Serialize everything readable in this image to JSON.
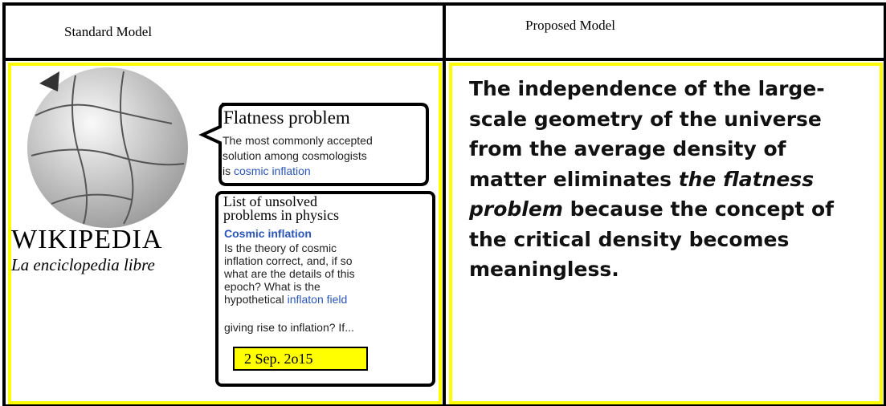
{
  "header": {
    "left": "Standard Model",
    "right": "Proposed Model"
  },
  "wikipedia": {
    "wordmark": "WIKIPEDIA",
    "tagline": "La enciclopedia libre"
  },
  "bubble": {
    "title": "Flatness problem",
    "line1": "The most commonly accepted",
    "line2": "solution among  cosmologists",
    "line3": "is ",
    "link": "cosmic inflation"
  },
  "unsolved": {
    "title1": "List of unsolved",
    "title2": "problems in physics",
    "heading": "Cosmic inflation",
    "lines": [
      "Is the theory of cosmic",
      "inflation correct, and, if so",
      "what are the details of this",
      "epoch? What is the",
      "hypothetical "
    ],
    "link": "inflaton field",
    "last": "giving rise to inflation? If...",
    "date": "2 Sep. 2o15"
  },
  "proposed": {
    "segments": [
      "The independence of the large-",
      "scale geometry of the universe",
      "from the average density of",
      "matter eliminates ",
      "the flatness",
      "problem",
      " because the concept of",
      "the critical density  becomes",
      "meaningless."
    ]
  }
}
